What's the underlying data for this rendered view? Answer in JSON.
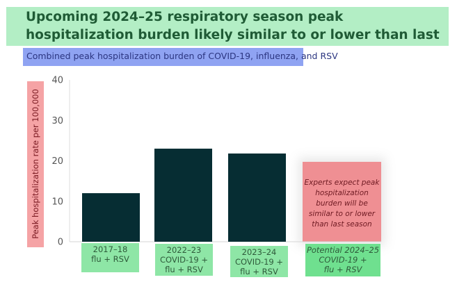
{
  "header": {
    "title": "Upcoming 2024–25 respiratory season peak hospitalization burden likely similar to or lower than last year",
    "subtitle": "Combined peak hospitalization burden of COVID-19, influenza, and RSV"
  },
  "colors": {
    "bar": "#062d33",
    "title_bg": "#b3eec5",
    "subtitle_bg": "#8fa3f2",
    "ylabel_bg": "#f5a3a5",
    "category_bg": "#8ee6a6",
    "projection_bg": "#ef8f93"
  },
  "chart_data": {
    "type": "bar",
    "title": "Combined peak hospitalization burden of COVID-19, influenza, and RSV",
    "xlabel": "",
    "ylabel": "Peak hospitalization rate per 100,000",
    "ylim": [
      0,
      40
    ],
    "yticks": [
      0,
      10,
      20,
      30,
      40
    ],
    "grid": false,
    "categories": [
      [
        "2017–18",
        "flu + RSV"
      ],
      [
        "2022–23",
        "COVID-19 +",
        "flu + RSV"
      ],
      [
        "2023–24",
        "COVID-19 +",
        "flu + RSV"
      ],
      [
        "Potential 2024–25",
        "COVID-19 +",
        "flu + RSV"
      ]
    ],
    "values": [
      12.0,
      23.0,
      21.8,
      null
    ],
    "projection": {
      "category_index": 3,
      "upper_estimate": 20,
      "annotation": [
        "Experts expect peak",
        "hospitalization",
        "burden will be",
        "similar to or lower",
        "than last season"
      ]
    }
  }
}
